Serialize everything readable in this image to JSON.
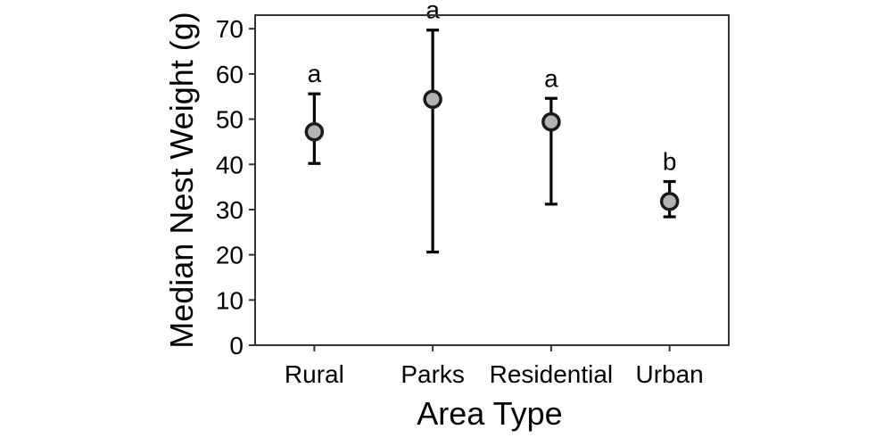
{
  "chart_data": {
    "type": "scatter",
    "title": "",
    "xlabel": "Area Type",
    "ylabel": "Median Nest Weight (g)",
    "categories": [
      "Rural",
      "Parks",
      "Residential",
      "Urban"
    ],
    "values": [
      47.2,
      54.4,
      49.4,
      31.8
    ],
    "error_low": [
      40.2,
      20.6,
      31.2,
      28.4
    ],
    "error_high": [
      55.6,
      69.7,
      54.6,
      36.2
    ],
    "group_letters": [
      "a",
      "a",
      "a",
      "b"
    ],
    "ylim": [
      0,
      73
    ],
    "yticks": [
      "0",
      "10",
      "20",
      "30",
      "40",
      "50",
      "60",
      "70"
    ],
    "grid": false,
    "colors": {
      "point_fill": "#b3b3b3",
      "point_stroke": "#1a1a1a",
      "errorbar": "#000000",
      "frame": "#333333"
    }
  }
}
